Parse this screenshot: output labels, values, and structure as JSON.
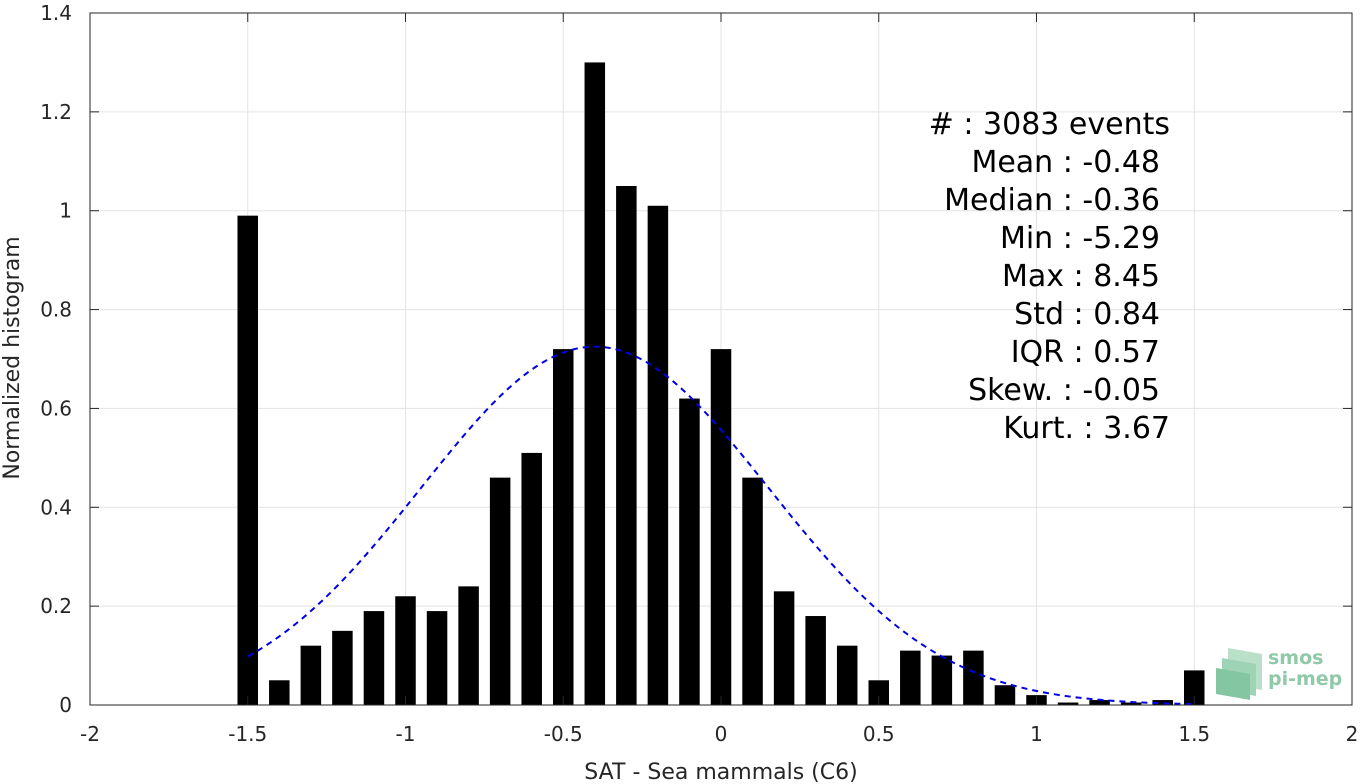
{
  "chart_data": {
    "type": "bar",
    "xlabel": "SAT - Sea mammals (C6)",
    "ylabel": "Normalized histogram",
    "xlim": [
      -2,
      2
    ],
    "ylim": [
      0,
      1.4
    ],
    "x_ticks": [
      -2,
      -1.5,
      -1,
      -0.5,
      0,
      0.5,
      1,
      1.5,
      2
    ],
    "x_tick_labels": [
      "-2",
      "-1.5",
      "-1",
      "-0.5",
      "0",
      "0.5",
      "1",
      "1.5",
      "2"
    ],
    "y_ticks": [
      0,
      0.2,
      0.4,
      0.6,
      0.8,
      1,
      1.2,
      1.4
    ],
    "y_tick_labels": [
      "0",
      "0.2",
      "0.4",
      "0.6",
      "0.8",
      "1",
      "1.2",
      "1.4"
    ],
    "grid": true,
    "bin_width": 0.1,
    "bar_centers": [
      -1.5,
      -1.4,
      -1.3,
      -1.2,
      -1.1,
      -1.0,
      -0.9,
      -0.8,
      -0.7,
      -0.6,
      -0.5,
      -0.4,
      -0.3,
      -0.2,
      -0.1,
      0.0,
      0.1,
      0.2,
      0.3,
      0.4,
      0.5,
      0.6,
      0.7,
      0.8,
      0.9,
      1.0,
      1.1,
      1.2,
      1.3,
      1.4,
      1.5
    ],
    "values": [
      0.99,
      0.05,
      0.12,
      0.15,
      0.19,
      0.22,
      0.19,
      0.24,
      0.46,
      0.51,
      0.72,
      1.3,
      1.05,
      1.01,
      0.62,
      0.72,
      0.46,
      0.23,
      0.18,
      0.12,
      0.05,
      0.11,
      0.1,
      0.11,
      0.04,
      0.02,
      0.005,
      0.01,
      0.005,
      0.01,
      0.07
    ],
    "bar_color": "#000000",
    "fit_curve": {
      "style": "dashed",
      "color": "#0000e6",
      "x_range": [
        -1.5,
        1.5
      ],
      "mean": -0.4,
      "sigma": 0.55,
      "peak": 0.725
    },
    "stats": [
      {
        "label": "#",
        "value": "  : 3083 events"
      },
      {
        "label": "Mean",
        "value": " : -0.48"
      },
      {
        "label": "Median",
        "value": " : -0.36"
      },
      {
        "label": "Min",
        "value": " : -5.29"
      },
      {
        "label": "Max",
        "value": " : 8.45"
      },
      {
        "label": "Std",
        "value": " : 0.84"
      },
      {
        "label": "IQR",
        "value": " : 0.57"
      },
      {
        "label": "Skew.",
        "value": " : -0.05"
      },
      {
        "label": "Kurt.",
        "value": " : 3.67"
      }
    ]
  },
  "logo": {
    "line1": "smos",
    "line2": "pi-mep",
    "color": "#8fc9a8"
  }
}
